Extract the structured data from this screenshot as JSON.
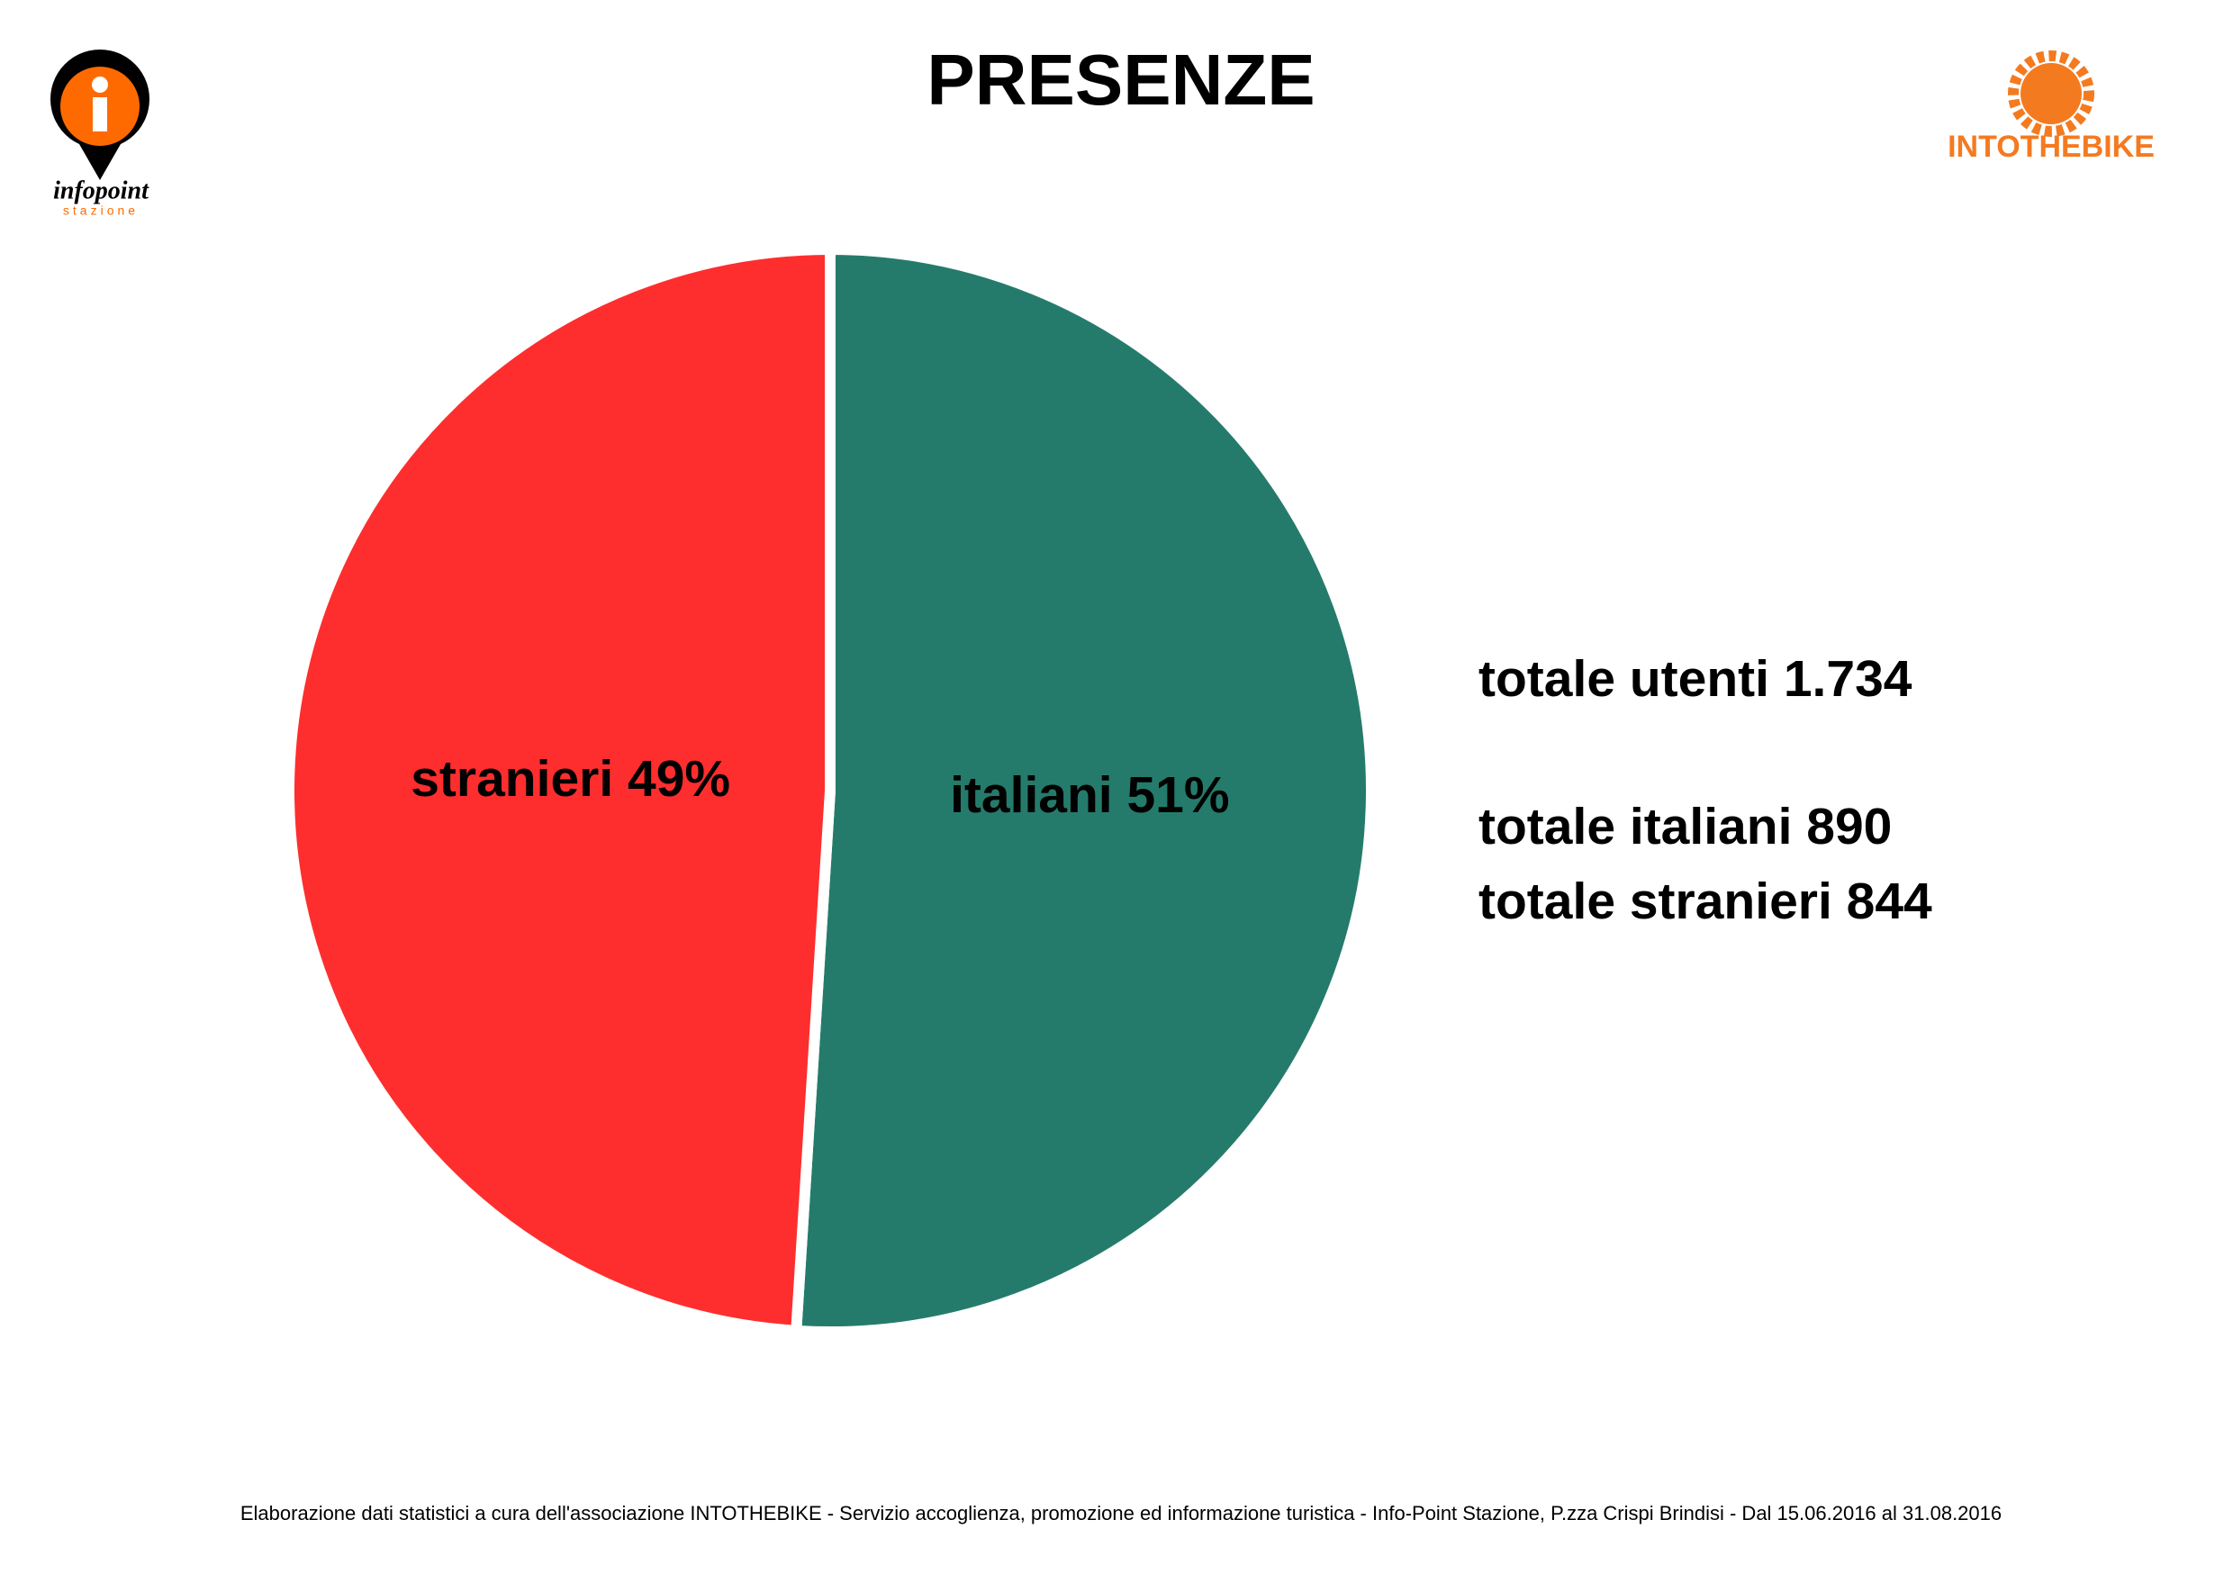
{
  "chart_data": {
    "type": "pie",
    "title": "PRESENZE",
    "values": [
      51,
      49
    ],
    "value_labels": [
      "italiani 51%",
      "stranieri 49%"
    ],
    "colors": [
      "#257b6b",
      "#fe2e2e"
    ],
    "annotations": [
      "totale utenti 1.734",
      "totale italiani 890",
      "totale stranieri 844"
    ],
    "footer": "Elaborazione dati statistici a cura dell'associazione INTOTHEBIKE - Servizio accoglienza, promozione ed informazione turistica - Info-Point Stazione, P.zza Crispi Brindisi - Dal 15.06.2016 al 31.08.2016"
  },
  "logos": {
    "left": {
      "name": "infopoint",
      "sub": "stazione"
    },
    "right": {
      "name": "INTOTHEBIKE"
    }
  }
}
